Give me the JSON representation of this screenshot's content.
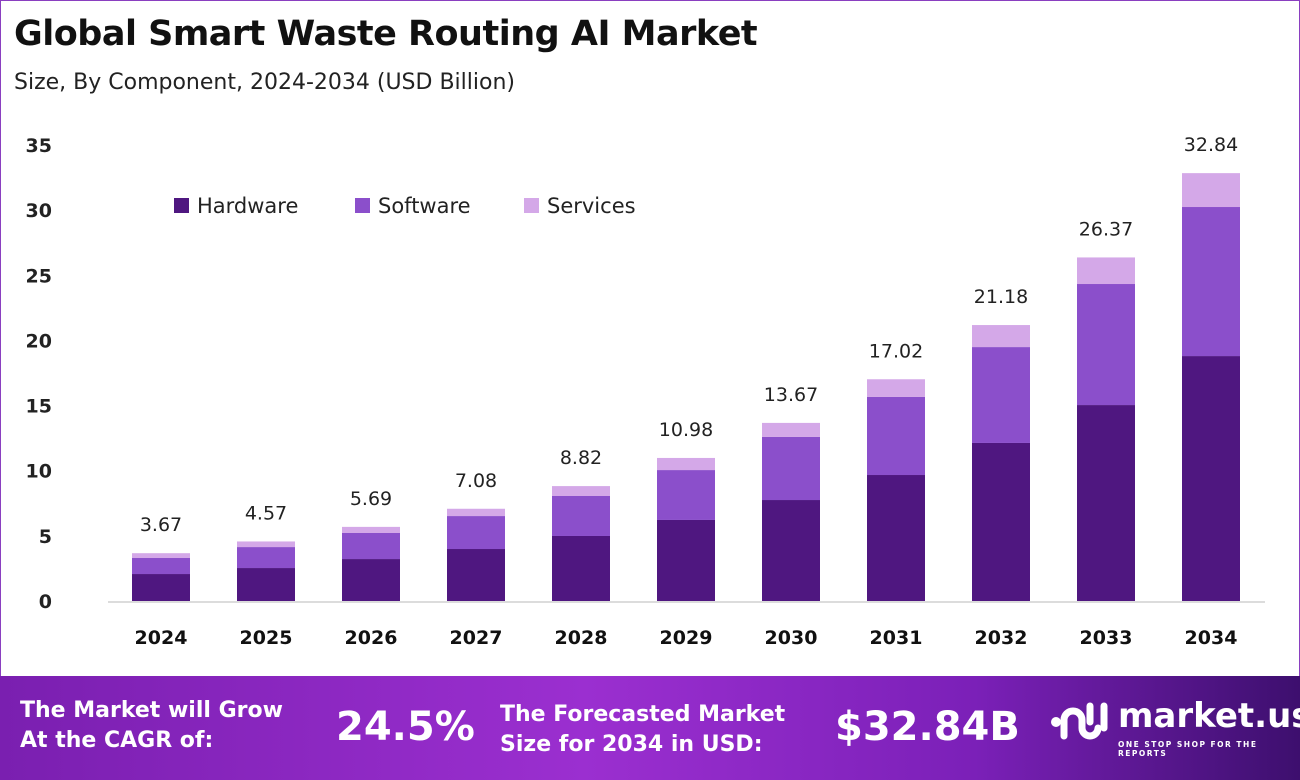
{
  "title": "Global Smart Waste Routing AI Market",
  "subtitle": "Size, By Component, 2024-2034 (USD Billion)",
  "chart_data": {
    "type": "bar",
    "stacked": true,
    "categories": [
      "2024",
      "2025",
      "2026",
      "2027",
      "2028",
      "2029",
      "2030",
      "2031",
      "2032",
      "2033",
      "2034"
    ],
    "series": [
      {
        "name": "Hardware",
        "color": "#4f1780",
        "values": [
          2.07,
          2.53,
          3.22,
          3.99,
          4.99,
          6.22,
          7.75,
          9.67,
          12.13,
          15.04,
          18.8
        ]
      },
      {
        "name": "Software",
        "color": "#8b4fcb",
        "values": [
          1.23,
          1.61,
          2.0,
          2.53,
          3.07,
          3.83,
          4.84,
          5.99,
          7.36,
          9.29,
          11.44
        ]
      },
      {
        "name": "Services",
        "color": "#d4a8e8",
        "values": [
          0.37,
          0.43,
          0.47,
          0.56,
          0.76,
          0.93,
          1.08,
          1.36,
          1.69,
          2.04,
          2.6
        ]
      }
    ],
    "totals": [
      "3.67",
      "4.57",
      "5.69",
      "7.08",
      "8.82",
      "10.98",
      "13.67",
      "17.02",
      "21.18",
      "26.37",
      "32.84"
    ],
    "yticks": [
      "0",
      "5",
      "10",
      "15",
      "20",
      "25",
      "30",
      "35"
    ],
    "ylim": [
      0,
      35
    ],
    "grid": false,
    "legend": "top-left"
  },
  "banner": {
    "cagr_label": "The Market will Grow At the CAGR of:",
    "cagr_value": "24.5%",
    "forecast_label": "The Forecasted Market Size for 2034 in USD:",
    "forecast_value": "$32.84B",
    "logo_name": "market.us",
    "logo_tagline": "ONE STOP SHOP FOR THE REPORTS"
  }
}
